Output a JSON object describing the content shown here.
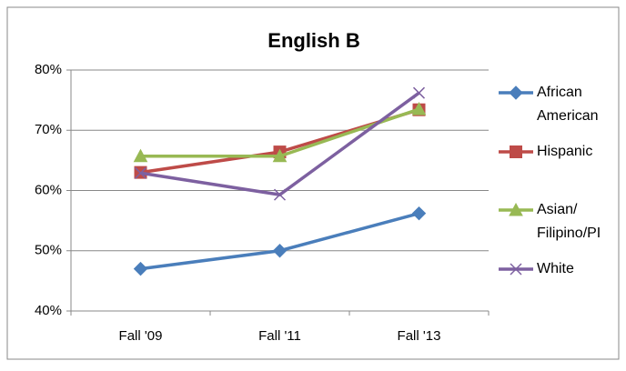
{
  "chart_data": {
    "type": "line",
    "title": "English B",
    "categories": [
      "Fall '09",
      "Fall '11",
      "Fall '13"
    ],
    "series": [
      {
        "name": "African American",
        "color": "#4a7ebb",
        "marker": "diamond",
        "values": [
          47,
          50,
          56.2
        ]
      },
      {
        "name": "Hispanic",
        "color": "#be4b48",
        "marker": "square",
        "values": [
          63,
          66.4,
          73.4
        ]
      },
      {
        "name": "Asian/ Filipino/PI",
        "color": "#98b954",
        "marker": "triangle",
        "values": [
          65.7,
          65.7,
          73.5
        ]
      },
      {
        "name": "White",
        "color": "#7d60a0",
        "marker": "x",
        "values": [
          62.9,
          59.3,
          76.2
        ]
      }
    ],
    "ylim": [
      40,
      80
    ],
    "yticks": [
      {
        "value": 40,
        "label": "40%"
      },
      {
        "value": 50,
        "label": "50%"
      },
      {
        "value": 60,
        "label": "60%"
      },
      {
        "value": 70,
        "label": "70%"
      },
      {
        "value": 80,
        "label": "80%"
      }
    ],
    "grid": true,
    "legend": "right"
  }
}
